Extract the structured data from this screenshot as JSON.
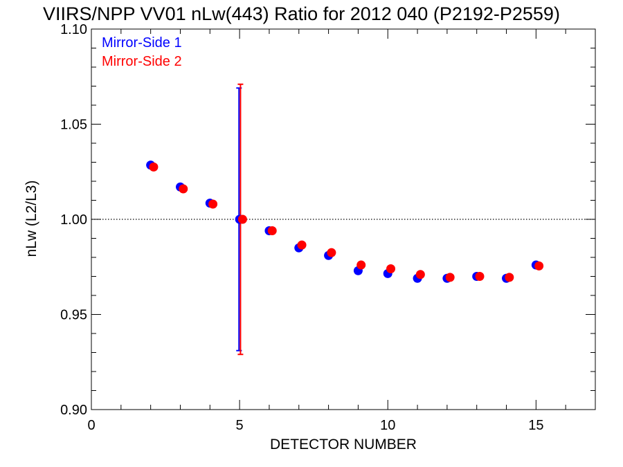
{
  "chart_data": {
    "type": "scatter",
    "title": "VIIRS/NPP VV01 nLw(443) Ratio for 2012 040 (P2192-P2559)",
    "xlabel": "DETECTOR NUMBER",
    "ylabel": "nLw (L2/L3)",
    "xlim": [
      0,
      17
    ],
    "ylim": [
      0.9,
      1.1
    ],
    "xticks": [
      0,
      5,
      10,
      15
    ],
    "xtick_labels": [
      "0",
      "5",
      "10",
      "15"
    ],
    "yticks": [
      0.9,
      0.95,
      1.0,
      1.05,
      1.1
    ],
    "ytick_labels": [
      "0.90",
      "0.95",
      "1.00",
      "1.05",
      "1.10"
    ],
    "reference_line": 1.0,
    "legend_position": "top-left",
    "series": [
      {
        "name": "Mirror-Side 1",
        "color": "#0000ff",
        "x": [
          2,
          3,
          4,
          5,
          6,
          7,
          8,
          9,
          10,
          11,
          12,
          13,
          14,
          15
        ],
        "y": [
          1.0285,
          1.017,
          1.0085,
          1.0,
          0.994,
          0.985,
          0.981,
          0.973,
          0.9715,
          0.969,
          0.969,
          0.97,
          0.969,
          0.976
        ],
        "error_bar": {
          "x": 5,
          "low": 0.931,
          "high": 1.069
        }
      },
      {
        "name": "Mirror-Side 2",
        "color": "#ff0000",
        "x": [
          2,
          3,
          4,
          5,
          6,
          7,
          8,
          9,
          10,
          11,
          12,
          13,
          14,
          15
        ],
        "y": [
          1.0275,
          1.016,
          1.008,
          1.0,
          0.994,
          0.9865,
          0.9825,
          0.976,
          0.974,
          0.971,
          0.9695,
          0.97,
          0.9695,
          0.9755
        ],
        "error_bar": {
          "x": 5,
          "low": 0.929,
          "high": 1.071
        }
      }
    ]
  }
}
